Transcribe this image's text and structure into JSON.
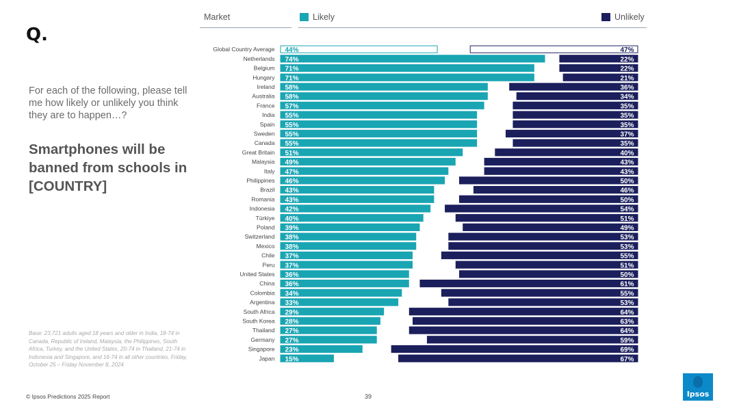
{
  "header": {
    "market_label": "Market",
    "likely_label": "Likely",
    "unlikely_label": "Unlikely"
  },
  "left_panel": {
    "q_mark": "Q.",
    "question": "For each of the following, please tell me how likely or unlikely you think they are to happen…?",
    "statement": "Smartphones will be banned from schools in [COUNTRY]",
    "base_note": "Base: 23,721 adults aged 18 years and older in India, 18-74 in Canada, Republic of Ireland, Malaysia, the Philippines, South Africa, Turkey, and the United States, 20-74 in Thailand, 21-74 in Indonesia and Singapore, and 16-74 in all other countries, Friday, October 25 – Friday November 8, 2024"
  },
  "footer": {
    "copyright": "© Ipsos Predictions 2025 Report",
    "page_number": "39",
    "logo_text": "Ipsos"
  },
  "colors": {
    "likely": "#1aa5b3",
    "unlikely": "#1b1f5c",
    "outline": "#1aa5b3"
  },
  "chart_data": {
    "type": "bar",
    "orientation": "horizontal-diverging",
    "xlim": [
      0,
      100
    ],
    "categories": [
      "Global Country Average",
      "Netherlands",
      "Belgium",
      "Hungary",
      "Ireland",
      "Australia",
      "France",
      "India",
      "Spain",
      "Sweden",
      "Canada",
      "Great Britain",
      "Malaysia",
      "Italy",
      "Philippines",
      "Brazil",
      "Romania",
      "Indonesia",
      "Türkiye",
      "Poland",
      "Switzerland",
      "Mexico",
      "Chile",
      "Peru",
      "United States",
      "China",
      "Colombia",
      "Argentina",
      "South Africa",
      "South Korea",
      "Thailand",
      "Germany",
      "Singapore",
      "Japan"
    ],
    "series": [
      {
        "name": "Likely",
        "values": [
          44,
          74,
          71,
          71,
          58,
          58,
          57,
          55,
          55,
          55,
          55,
          51,
          49,
          47,
          46,
          43,
          43,
          42,
          40,
          39,
          38,
          38,
          37,
          37,
          36,
          36,
          34,
          33,
          29,
          28,
          27,
          27,
          23,
          15
        ]
      },
      {
        "name": "Unlikely",
        "values": [
          47,
          22,
          22,
          21,
          36,
          34,
          35,
          35,
          35,
          37,
          35,
          40,
          43,
          43,
          50,
          46,
          50,
          54,
          51,
          49,
          53,
          53,
          55,
          51,
          50,
          61,
          55,
          53,
          64,
          63,
          64,
          59,
          69,
          67
        ]
      }
    ],
    "value_suffix": "%",
    "highlight_first_row": true
  }
}
